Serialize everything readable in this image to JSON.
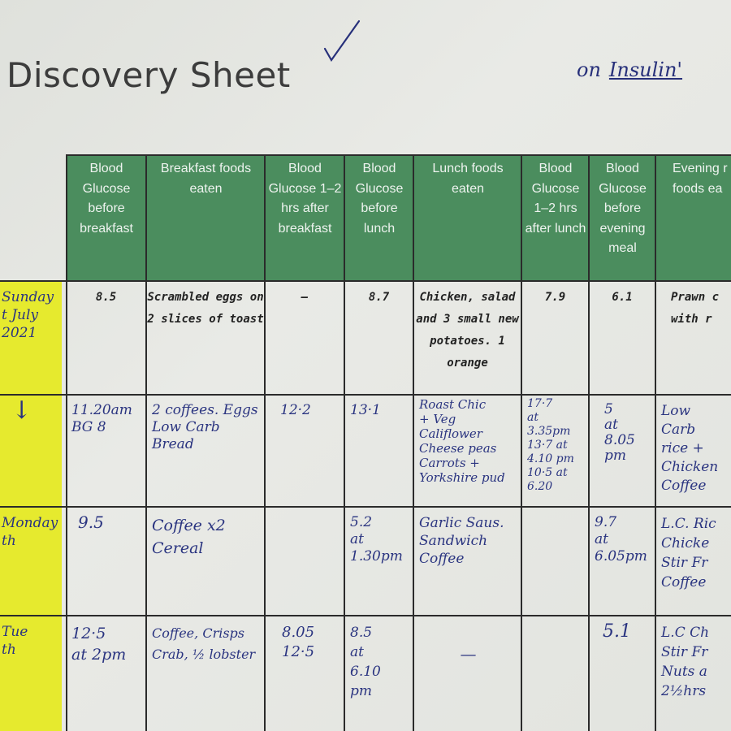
{
  "sheet": {
    "title": "Discovery Sheet",
    "note_prefix": "on",
    "note_insulin": "Insulin'"
  },
  "columns": [
    "Blood Glucose before breakfast",
    "Breakfast foods eaten",
    "Blood Glucose 1–2 hrs after breakfast",
    "Blood Glucose before lunch",
    "Lunch foods eaten",
    "Blood Glucose 1–2 hrs after lunch",
    "Blood Glucose before evening meal",
    "Evening r foods ea"
  ],
  "rows": [
    {
      "day": "Sunday\nt July\n2021",
      "cells": [
        "8.5",
        "Scrambled eggs on 2 slices of toast",
        "–",
        "8.7",
        "Chicken, salad and 3 small new potatoes. 1 orange",
        "7.9",
        "6.1",
        "Prawn c with r"
      ]
    },
    {
      "day": "↓",
      "cells": [
        "11.20am\nBG 8",
        "2 coffees. Eggs\nLow Carb Bread",
        "12·2",
        "13·1",
        "Roast Chic\n+ Veg\nCaliflower\nCheese peas\nCarrots +\nYorkshire pud",
        "17·7\nat\n3.35pm\n13·7 at\n4.10 pm\n10·5 at\n6.20",
        "5\nat\n8.05\npm",
        "Low Carb\nrice +\nChicken\nCoffee"
      ]
    },
    {
      "day": "Monday\nth",
      "cells": [
        "9.5",
        "Coffee x2\nCereal",
        "",
        "5.2\nat\n1.30pm",
        "Garlic Saus.\nSandwich\nCoffee",
        "",
        "9.7\nat\n6.05pm",
        "L.C. Ric\nChicke\nStir Fr\nCoffee"
      ]
    },
    {
      "day": "Tue\nth",
      "cells": [
        "12·5\nat 2pm",
        "Coffee, Crisps\nCrab, ½ lobster",
        "8.05\n12·5",
        "8.5\nat\n6.10\npm",
        "—",
        "",
        "5.1",
        "L.C Ch\nStir Fr\nNuts a\n2½hrs"
      ]
    }
  ]
}
